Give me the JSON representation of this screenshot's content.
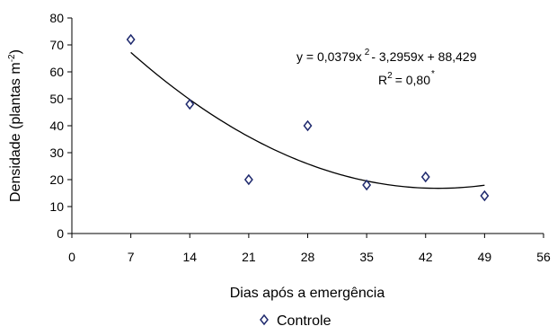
{
  "chart_data": {
    "type": "scatter",
    "xlabel": "Dias após a emergência",
    "ylabel_main": "Densidade (plantas m",
    "ylabel_sup": "-2",
    "ylabel_close": ")",
    "xlim": [
      0,
      56
    ],
    "ylim": [
      0,
      80
    ],
    "xticks": [
      0,
      7,
      14,
      21,
      28,
      35,
      42,
      49,
      56
    ],
    "yticks": [
      0,
      10,
      20,
      30,
      40,
      50,
      60,
      70,
      80
    ],
    "grid": false,
    "legend_position": "bottom-center",
    "series": [
      {
        "name": "Controle",
        "marker": "diamond-open",
        "color": "#1f2a6e",
        "x": [
          7,
          14,
          21,
          28,
          35,
          42,
          49
        ],
        "y": [
          72,
          48,
          20,
          40,
          18,
          21,
          14
        ]
      }
    ],
    "trendline": {
      "type": "polynomial",
      "coefficients": [
        0.0379,
        -3.2959,
        88.429
      ],
      "x_range": [
        7,
        49
      ]
    },
    "equation": {
      "prefix": "y = 0,0379x",
      "exp": "2",
      "suffix": "- 3,2959x + 88,429",
      "r2_prefix": "R",
      "r2_exp": "2",
      "r2_value": "= 0,80",
      "r2_mark": "*"
    }
  }
}
